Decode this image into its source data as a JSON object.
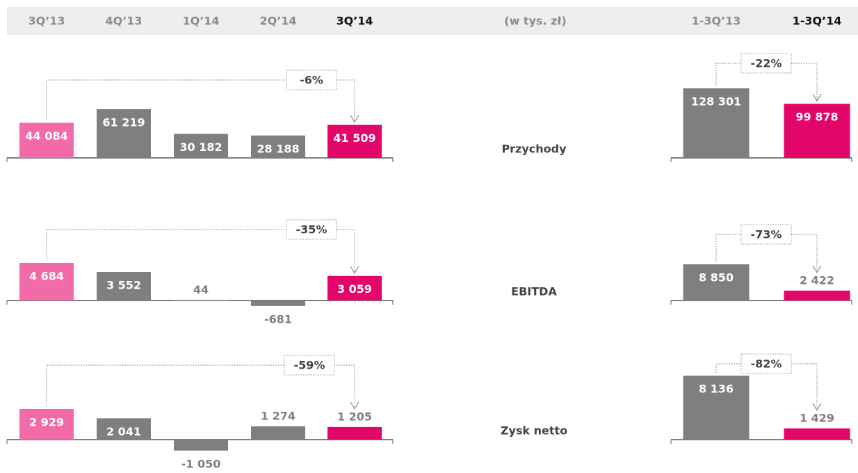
{
  "header": {
    "categories": [
      "3Q’13",
      "4Q’13",
      "1Q’14",
      "2Q’14",
      "3Q’14"
    ],
    "unit": "(w tys. zł)",
    "ytd_categories": [
      "1-3Q’13",
      "1-3Q’14"
    ]
  },
  "colors": {
    "previous": "#f36aa9",
    "other": "#7f7f7f",
    "current": "#e2066b"
  },
  "chart_data": [
    {
      "type": "bar",
      "title": "Przychody",
      "quarterly": {
        "values": [
          44084,
          61219,
          30182,
          28188,
          41509
        ],
        "value_labels": [
          "44 084",
          "61 219",
          "30 182",
          "28 188",
          "41 509"
        ],
        "change": "-6%"
      },
      "ytd": {
        "values": [
          128301,
          99878
        ],
        "value_labels": [
          "128 301",
          "99 878"
        ],
        "change": "-22%"
      }
    },
    {
      "type": "bar",
      "title": "EBITDA",
      "quarterly": {
        "values": [
          4684,
          3552,
          44,
          -681,
          3059
        ],
        "value_labels": [
          "4 684",
          "3 552",
          "44",
          "-681",
          "3 059"
        ],
        "change": "-35%"
      },
      "ytd": {
        "values": [
          8850,
          2422
        ],
        "value_labels": [
          "8 850",
          "2 422"
        ],
        "change": "-73%"
      }
    },
    {
      "type": "bar",
      "title": "Zysk netto",
      "quarterly": {
        "values": [
          2929,
          2041,
          -1050,
          1274,
          1205
        ],
        "value_labels": [
          "2 929",
          "2 041",
          "-1 050",
          "1 274",
          "1 205"
        ],
        "change": "-59%"
      },
      "ytd": {
        "values": [
          8136,
          1429
        ],
        "value_labels": [
          "8 136",
          "1 429"
        ],
        "change": "-82%"
      }
    }
  ]
}
